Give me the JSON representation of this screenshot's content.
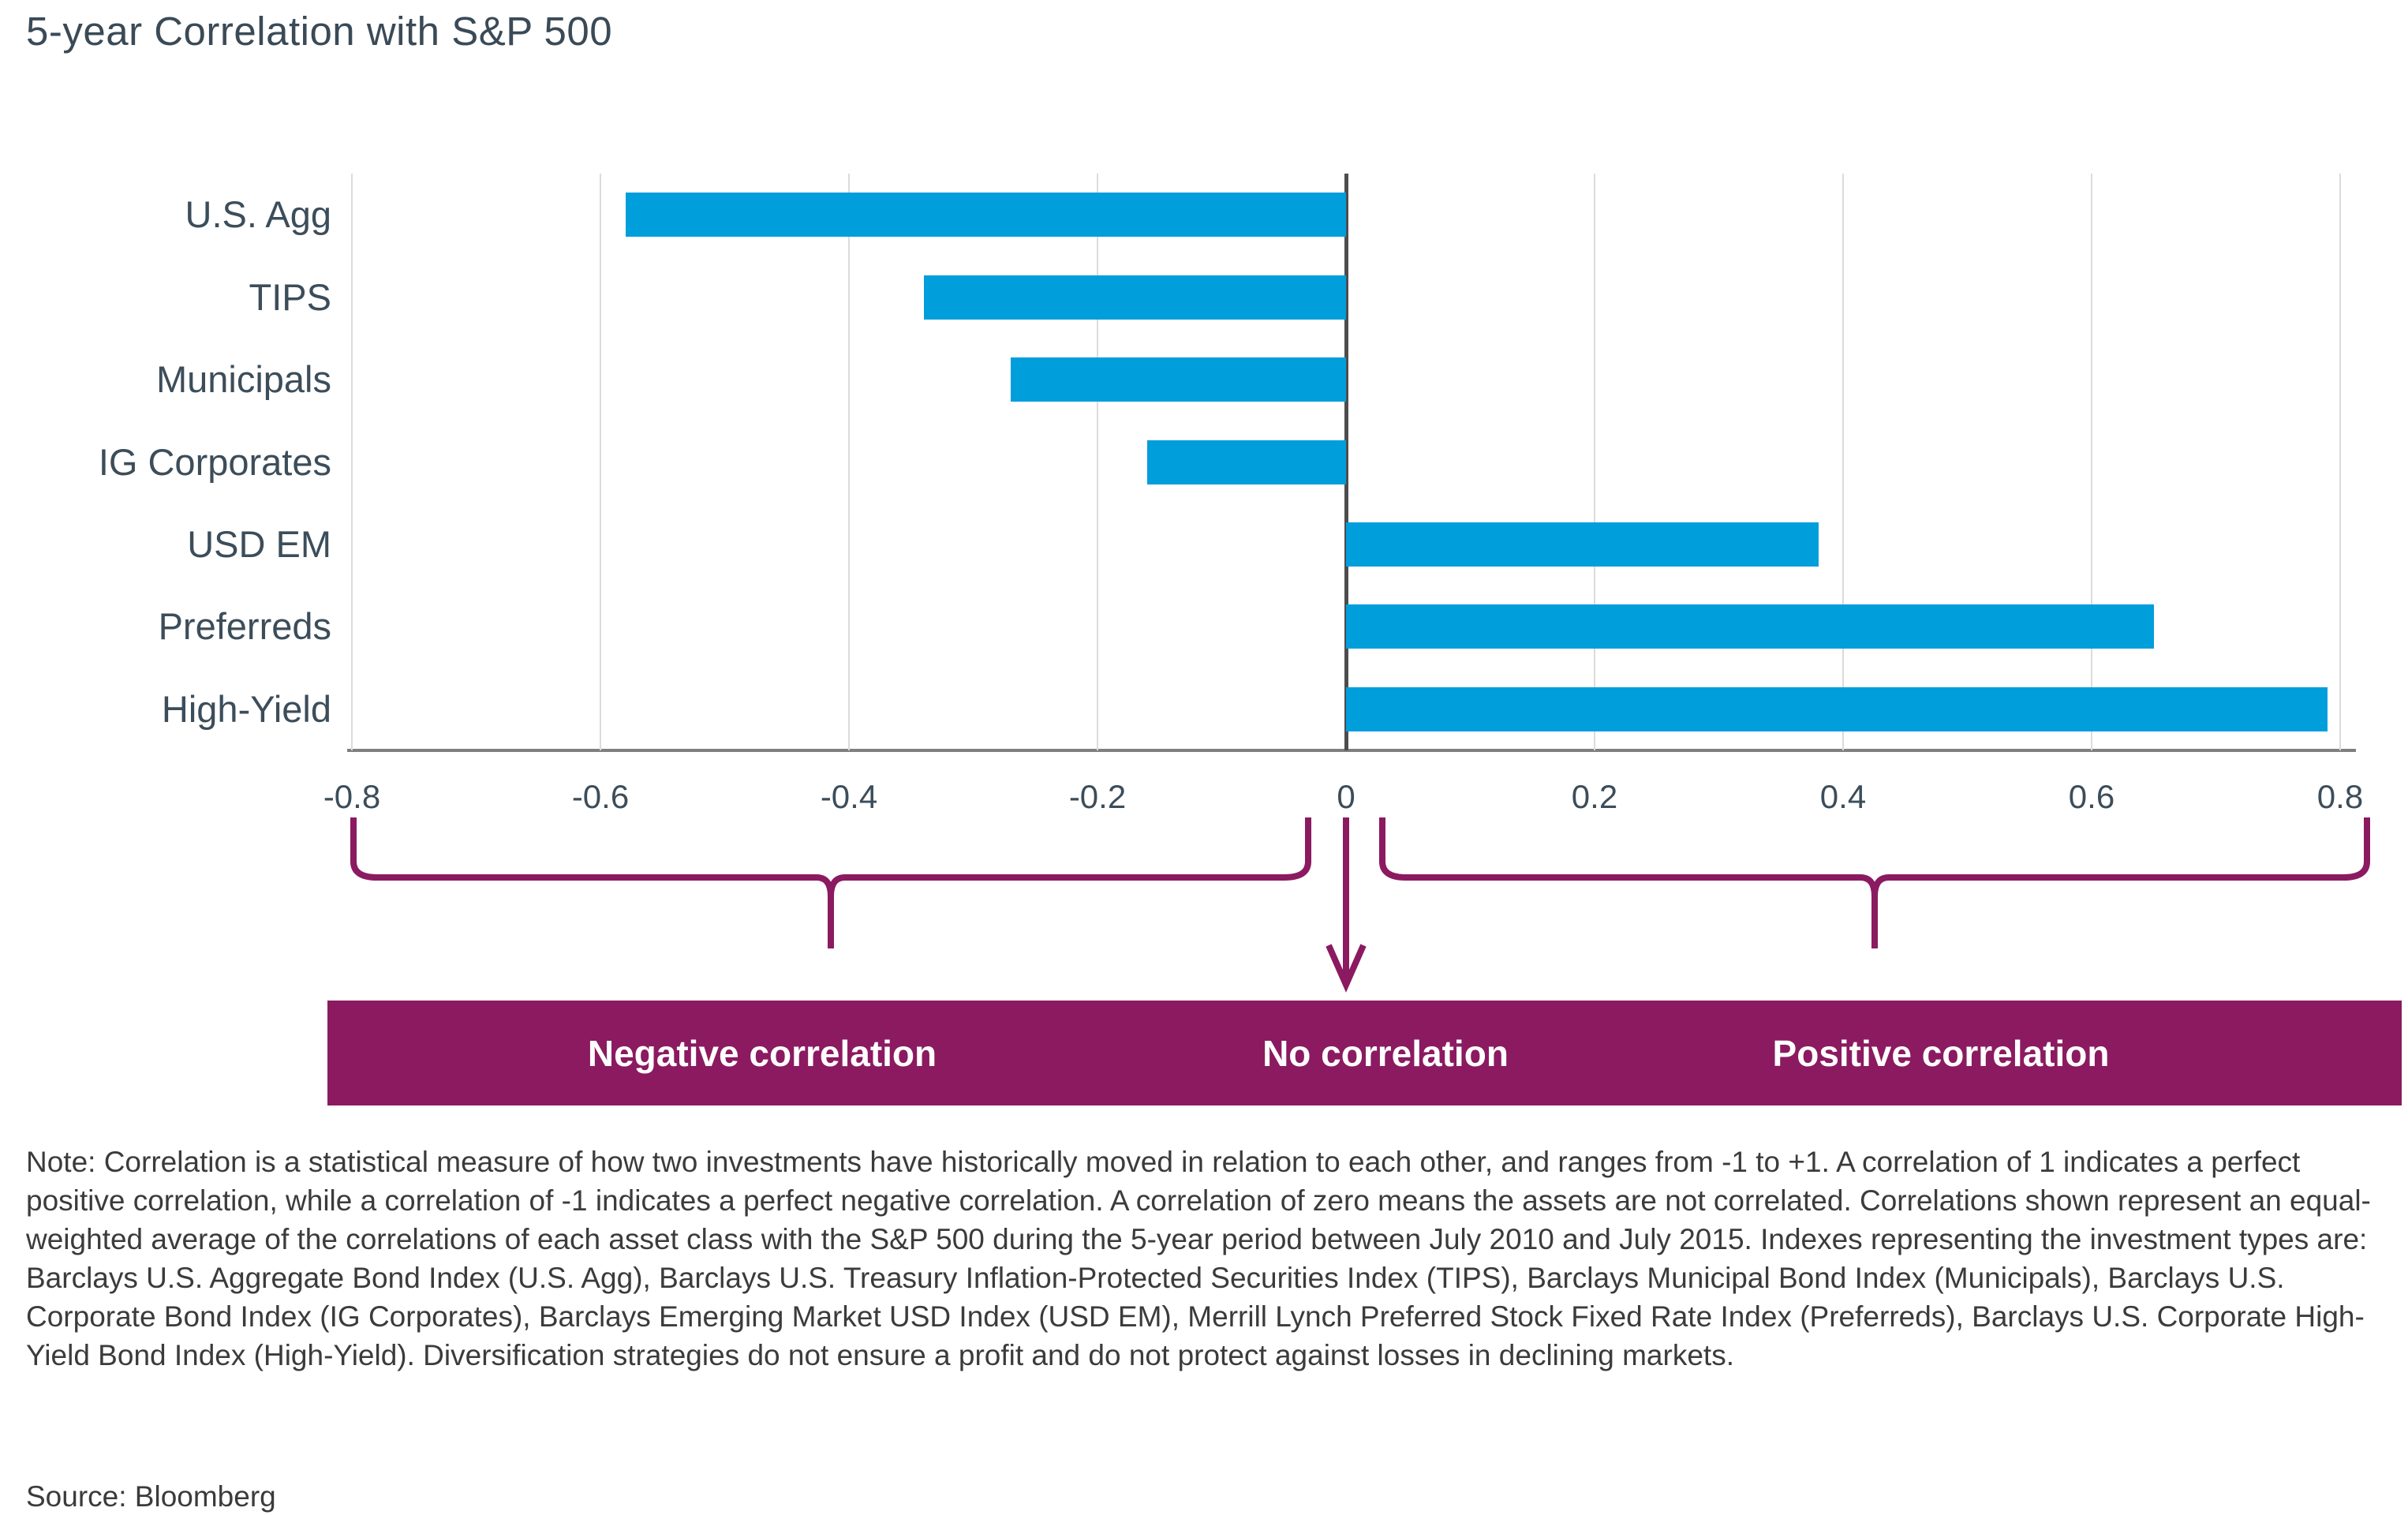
{
  "title": "5-year Correlation with S&P 500",
  "chart_data": {
    "type": "bar",
    "orientation": "horizontal",
    "title": "5-year Correlation with S&P 500",
    "categories": [
      "U.S. Agg",
      "TIPS",
      "Municipals",
      "IG Corporates",
      "USD EM",
      "Preferreds",
      "High-Yield"
    ],
    "values": [
      -0.58,
      -0.34,
      -0.27,
      -0.16,
      0.38,
      0.65,
      0.79
    ],
    "xlim": [
      -0.8,
      0.8
    ],
    "x_ticks": [
      -0.8,
      -0.6,
      -0.4,
      -0.2,
      0,
      0.2,
      0.4,
      0.6,
      0.8
    ],
    "x_tick_labels": [
      "-0.8",
      "-0.6",
      "-0.4",
      "-0.2",
      "0",
      "0.2",
      "0.4",
      "0.6",
      "0.8"
    ],
    "grid": "vertical",
    "legend": "none",
    "xlabel": "",
    "ylabel": ""
  },
  "annotations": {
    "negative_label": "Negative correlation",
    "no_label": "No correlation",
    "positive_label": "Positive correlation"
  },
  "note": "Note: Correlation is a statistical measure of how two investments have historically moved in relation to each other, and ranges from -1 to +1. A correlation of 1 indicates a perfect positive correlation, while a correlation of -1 indicates a perfect negative correlation. A correlation of zero means the assets are not correlated. Correlations shown represent an equal-weighted average of the correlations of each asset class with the S&P 500 during the 5-year period between July 2010 and July 2015. Indexes representing the investment types are: Barclays U.S. Aggregate Bond Index (U.S. Agg), Barclays U.S. Treasury Inflation-Protected Securities Index (TIPS), Barclays Municipal Bond Index (Municipals), Barclays U.S. Corporate Bond Index (IG Corporates), Barclays Emerging Market USD Index (USD EM), Merrill Lynch Preferred Stock Fixed Rate Index (Preferreds), Barclays U.S. Corporate High-Yield Bond Index (High-Yield). Diversification strategies do not ensure a profit and do not protect against losses in declining markets.",
  "source": "Source: Bloomberg",
  "colors": {
    "bar": "#009EDB",
    "banner": "#8B1A61",
    "heading_text": "#3A4A57",
    "axis_text": "#3C4D5A",
    "body_text": "#3B3B3B",
    "gridline": "#DBDBDB",
    "zero_line": "#4D4D4D",
    "axis_line": "#7F7F7F"
  }
}
